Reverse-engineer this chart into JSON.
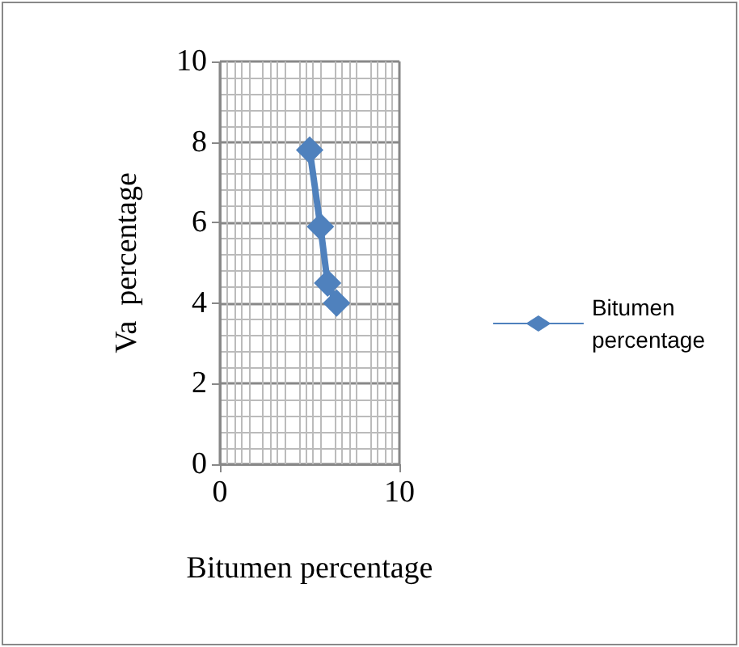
{
  "chart_data": {
    "type": "line",
    "xlabel": "Bitumen percentage",
    "ylabel": "Va  percentage",
    "series": [
      {
        "name": "Bitumen percentage",
        "color": "#4f81bd",
        "x": [
          5.0,
          5.6,
          6.0,
          6.5
        ],
        "values": [
          7.8,
          5.9,
          4.5,
          4.0
        ]
      }
    ],
    "xlim": [
      0,
      10
    ],
    "xticks": [
      0,
      10
    ],
    "ylim": [
      0,
      10
    ],
    "yticks": [
      0,
      2,
      4,
      6,
      8,
      10
    ],
    "grid": true,
    "legend": "right",
    "marker": "diamond",
    "line_style": "solid"
  }
}
